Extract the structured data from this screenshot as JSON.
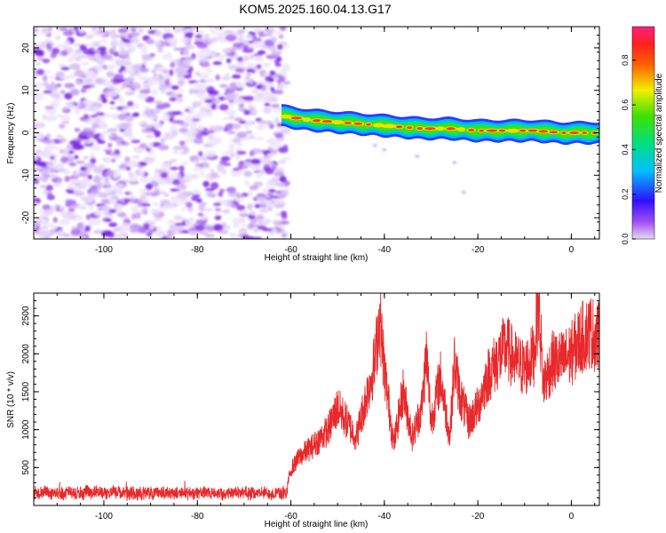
{
  "page": {
    "title": "KOM5.2025.160.04.13.G17"
  },
  "colors": {
    "snr_line": "#e8292b",
    "scatter_purple": "#7a20e8",
    "background": "#ffffff",
    "axis": "#000000"
  },
  "colorbar": {
    "label": "Normalized spectral amplitude",
    "ticks": [
      "0.0",
      "0.2",
      "0.4",
      "0.6",
      "0.8"
    ],
    "tick_values": [
      0.0,
      0.2,
      0.4,
      0.6,
      0.8
    ],
    "range": [
      0.0,
      0.95
    ],
    "colormap": "rainbow (magenta-purple-blue-cyan-green-yellow-red-pink)"
  },
  "chart_data": [
    {
      "type": "heatmap",
      "title": "KOM5.2025.160.04.13.G17",
      "xlabel": "Height of straight line (km)",
      "ylabel": "Frequency (Hz)",
      "xlim": [
        -115,
        6
      ],
      "ylim": [
        -25,
        25
      ],
      "x_ticks": [
        -100,
        -80,
        -60,
        -40,
        -20,
        0
      ],
      "x_tick_labels": [
        "-100",
        "-80",
        "-60",
        "-40",
        "-20",
        "0"
      ],
      "y_ticks": [
        -20,
        -10,
        0,
        10,
        20
      ],
      "y_tick_labels": [
        "-20",
        "-10",
        "0",
        "10",
        "20"
      ],
      "grid": false,
      "regions": [
        {
          "description": "noise",
          "x_range": [
            -115,
            -62
          ],
          "y_range": [
            -25,
            25
          ],
          "amplitude_range": [
            0.0,
            0.2
          ]
        },
        {
          "description": "signal",
          "x_range": [
            -62,
            6
          ],
          "frequency_hz": [
            4,
            3,
            2.5,
            2,
            1.5,
            1,
            1,
            0.5,
            0.5,
            0.5,
            0,
            0
          ],
          "x_points": [
            -62,
            -56,
            -50,
            -44,
            -38,
            -32,
            -26,
            -20,
            -14,
            -8,
            -2,
            5
          ],
          "amplitude_range": [
            0.3,
            0.9
          ]
        }
      ]
    },
    {
      "type": "line",
      "xlabel": "Height of straight line (km)",
      "ylabel": "SNR (10 * v/v)",
      "xlim": [
        -115,
        6
      ],
      "ylim": [
        0,
        2800
      ],
      "x_ticks": [
        -100,
        -80,
        -60,
        -40,
        -20,
        0
      ],
      "x_tick_labels": [
        "-100",
        "-80",
        "-60",
        "-40",
        "-20",
        "0"
      ],
      "y_ticks": [
        500,
        1000,
        1500,
        2000,
        2500
      ],
      "y_tick_labels": [
        "500",
        "1000",
        "1500",
        "2000",
        "2500"
      ],
      "grid": false,
      "series": [
        {
          "x": [
            -115,
            -110,
            -105,
            -100,
            -95,
            -90,
            -85,
            -80,
            -75,
            -70,
            -65,
            -61,
            -60,
            -58,
            -55,
            -52,
            -50,
            -48,
            -46,
            -44,
            -42,
            -41,
            -40,
            -38,
            -36,
            -34,
            -32,
            -31,
            -30,
            -28,
            -26,
            -25,
            -24,
            -22,
            -20,
            -18,
            -16,
            -14,
            -12,
            -10,
            -8,
            -7,
            -6,
            -4,
            -2,
            0,
            2,
            4,
            6
          ],
          "values": [
            150,
            170,
            160,
            180,
            160,
            170,
            160,
            170,
            160,
            170,
            160,
            160,
            480,
            650,
            800,
            1000,
            1300,
            1100,
            900,
            1400,
            1900,
            2500,
            1800,
            800,
            1500,
            900,
            1300,
            2000,
            1100,
            1700,
            900,
            1900,
            1500,
            1100,
            1300,
            1700,
            1900,
            2100,
            1900,
            1800,
            2000,
            2700,
            1600,
            1900,
            1900,
            2000,
            2200,
            2300,
            2200
          ]
        }
      ]
    }
  ]
}
